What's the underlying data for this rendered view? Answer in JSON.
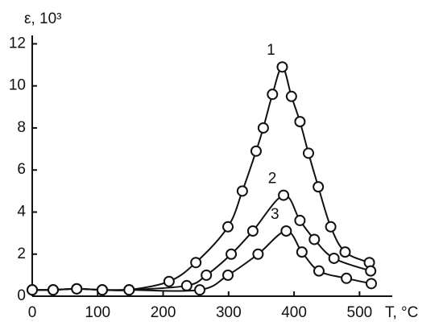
{
  "chart_data": {
    "type": "line",
    "y_label": "ε, 10³",
    "x_label": "T, °C",
    "xlim": [
      0,
      550
    ],
    "ylim": [
      0,
      12.4
    ],
    "xticks": [
      0,
      100,
      200,
      300,
      400,
      500
    ],
    "yticks": [
      0,
      2,
      4,
      6,
      8,
      10,
      12
    ],
    "grid": false,
    "series": [
      {
        "name": "1",
        "color": "#111111",
        "x": [
          0,
          32,
          68,
          107,
          148,
          209,
          250,
          299,
          321,
          342,
          353,
          367,
          382,
          396,
          409,
          422,
          437,
          456,
          478,
          515
        ],
        "values": [
          0.3,
          0.3,
          0.35,
          0.3,
          0.3,
          0.7,
          1.6,
          3.3,
          5.0,
          6.9,
          8.0,
          9.6,
          10.9,
          9.5,
          8.3,
          6.8,
          5.2,
          3.3,
          2.1,
          1.6
        ]
      },
      {
        "name": "2",
        "color": "#111111",
        "x": [
          0,
          32,
          68,
          107,
          148,
          236,
          266,
          304,
          337,
          384,
          409,
          431,
          461,
          517
        ],
        "values": [
          0.3,
          0.3,
          0.35,
          0.3,
          0.3,
          0.5,
          1.0,
          2.0,
          3.1,
          4.8,
          3.6,
          2.7,
          1.8,
          1.2
        ]
      },
      {
        "name": "3",
        "color": "#111111",
        "x": [
          0,
          32,
          68,
          107,
          148,
          256,
          299,
          345,
          388,
          412,
          438,
          480,
          518
        ],
        "values": [
          0.3,
          0.3,
          0.35,
          0.3,
          0.3,
          0.3,
          1.0,
          2.0,
          3.1,
          2.1,
          1.2,
          0.85,
          0.6
        ]
      }
    ]
  }
}
